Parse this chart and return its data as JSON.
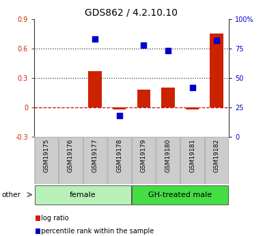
{
  "title": "GDS862 / 4.2.10.10",
  "samples": [
    "GSM19175",
    "GSM19176",
    "GSM19177",
    "GSM19178",
    "GSM19179",
    "GSM19180",
    "GSM19181",
    "GSM19182"
  ],
  "log_ratio": [
    0.0,
    0.0,
    0.37,
    -0.02,
    0.18,
    0.2,
    -0.02,
    0.75
  ],
  "percentile": [
    null,
    null,
    83,
    18,
    78,
    73,
    42,
    82
  ],
  "groups": [
    {
      "label": "female",
      "start": 0,
      "end": 4,
      "color": "#b8f0b8"
    },
    {
      "label": "GH-treated male",
      "start": 4,
      "end": 8,
      "color": "#44dd44"
    }
  ],
  "left_ylim": [
    -0.3,
    0.9
  ],
  "right_ylim": [
    0,
    100
  ],
  "left_yticks": [
    -0.3,
    0.0,
    0.3,
    0.6,
    0.9
  ],
  "right_yticks": [
    0,
    25,
    50,
    75,
    100
  ],
  "right_yticklabels": [
    "0",
    "25",
    "50",
    "75",
    "100%"
  ],
  "hlines": [
    0.0,
    0.3,
    0.6
  ],
  "hline_styles": [
    "dashed",
    "dotted",
    "dotted"
  ],
  "hline_colors": [
    "#cc0000",
    "#333333",
    "#333333"
  ],
  "bar_color": "#cc2200",
  "dot_color": "#0000cc",
  "bar_width": 0.55,
  "dot_size": 40,
  "legend_items": [
    "log ratio",
    "percentile rank within the sample"
  ],
  "other_label": "other",
  "plot_bg": "#ffffff",
  "tick_label_fontsize": 7,
  "title_fontsize": 10,
  "sample_fontsize": 6.5,
  "group_fontsize": 8,
  "legend_fontsize": 7
}
